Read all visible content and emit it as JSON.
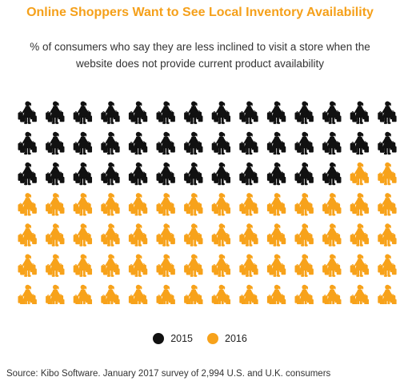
{
  "header": {
    "title": "Online Shoppers Want to See Local Inventory Availability",
    "subtitle": "% of consumers who say they are less inclined to visit a store when the website does not provide current product availability"
  },
  "chart_data": {
    "type": "pictograph",
    "total_icons": 98,
    "rows": 7,
    "columns": 14,
    "icon": "shopper-with-bags-icon",
    "series": [
      {
        "name": "2015",
        "value": 40,
        "color": "#111111"
      },
      {
        "name": "2016",
        "value": 58,
        "color": "#f7a21b"
      }
    ],
    "legend_position": "bottom-center"
  },
  "legend": [
    {
      "label": "2015",
      "color": "#111111"
    },
    {
      "label": "2016",
      "color": "#f7a21b"
    }
  ],
  "footer": {
    "source": "Source: Kibo Software. January 2017 survey of 2,994 U.S. and U.K. consumers"
  }
}
